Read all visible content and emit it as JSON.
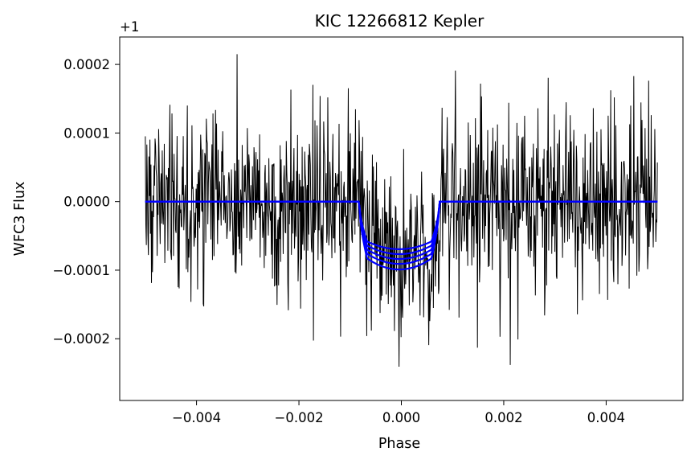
{
  "chart_data": {
    "type": "line",
    "title": "KIC 12266812 Kepler",
    "xlabel": "Phase",
    "ylabel": "WFC3 Flux",
    "y_offset_label": "+1",
    "xlim": [
      -0.0055,
      0.0055
    ],
    "ylim": [
      -0.00029,
      0.00024
    ],
    "x_ticks": [
      -0.004,
      -0.002,
      0.0,
      0.002,
      0.004
    ],
    "x_tick_labels": [
      "−0.004",
      "−0.002",
      "0.000",
      "0.002",
      "0.004"
    ],
    "y_ticks": [
      0.0002,
      0.0001,
      0.0,
      -0.0001,
      -0.0002
    ],
    "y_tick_labels": [
      "0.0002",
      "0.0001",
      "0.0000",
      "−0.0001",
      "−0.0002"
    ],
    "grid": false,
    "series": [
      {
        "color": "#000000",
        "style": "noisy observed light curve",
        "x_range": [
          -0.005,
          0.005
        ],
        "n_points": 1000,
        "baseline": 0.0,
        "noise_amplitude": 0.00012,
        "transit_center": 0.0,
        "transit_half_width": 0.00075,
        "transit_depth": -8e-05
      },
      {
        "color": "#0000ff",
        "style": "transit models",
        "x_range": [
          -0.005,
          0.005
        ],
        "ingress_start": -0.00082,
        "egress_end": 0.00074,
        "ingress_duration": 0.00015,
        "depths": [
          -6.8e-05,
          -7.5e-05,
          -8.2e-05,
          -8.9e-05,
          -9.7e-05
        ]
      }
    ]
  }
}
